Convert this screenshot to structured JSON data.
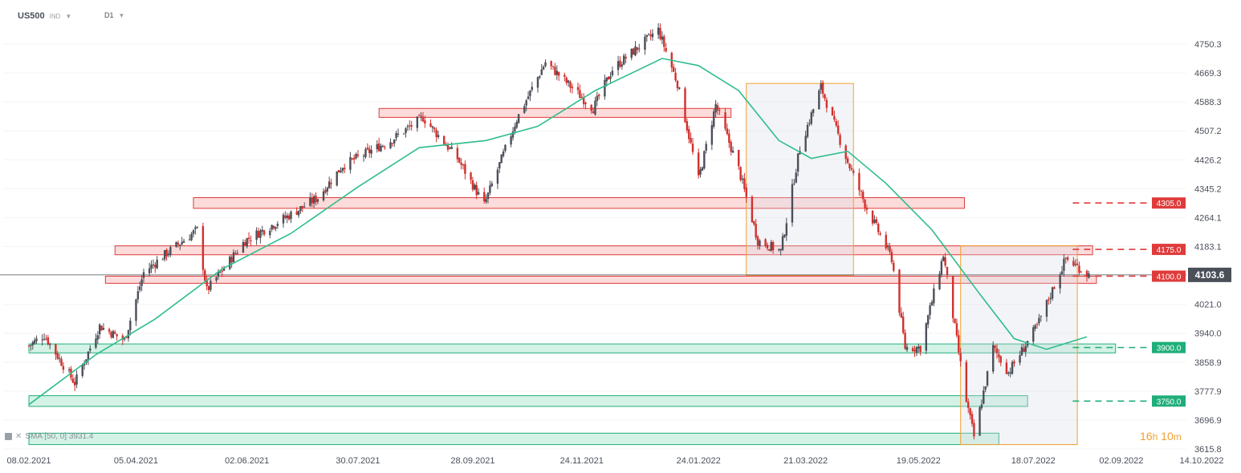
{
  "toolbar": {
    "symbol": "US500",
    "instrument_type": "IND",
    "interval": "D1"
  },
  "indicator": {
    "label": "SMA [50, 0] 3931.4"
  },
  "timer": {
    "hours": "16",
    "h": "h",
    "minutes": "10",
    "m": "m"
  },
  "colors": {
    "up": "#4b4f58",
    "down": "#d0312d",
    "sma": "#2dbd8c",
    "resistance": "#e03b3b",
    "support": "#1fae7a",
    "box": "#f0a030"
  },
  "chart_data": {
    "type": "candlestick",
    "symbol": "US500",
    "timeframe": "D1",
    "ylim": [
      3600,
      4800
    ],
    "y_ticks": [
      "4750.3",
      "4669.3",
      "4588.3",
      "4507.2",
      "4426.2",
      "4345.2",
      "4264.1",
      "4183.1",
      "4021.0",
      "3940.0",
      "3858.9",
      "3777.9",
      "3696.9",
      "3615.8"
    ],
    "x_ticks": [
      "08.02.2021",
      "05.04.2021",
      "02.06.2021",
      "30.07.2021",
      "28.09.2021",
      "24.11.2021",
      "24.01.2022",
      "21.03.2022",
      "19.05.2022",
      "18.07.2022",
      "02.09.2022",
      "14.10.2022"
    ],
    "x_range": [
      "2021-02-08",
      "2022-10-14"
    ],
    "current_price": "4103.6",
    "levels": [
      {
        "value": 4305.0,
        "label": "4305.0",
        "kind": "resistance"
      },
      {
        "value": 4175.0,
        "label": "4175.0",
        "kind": "resistance"
      },
      {
        "value": 4100.0,
        "label": "4100.0",
        "kind": "resistance"
      },
      {
        "value": 3900.0,
        "label": "3900.0",
        "kind": "support"
      },
      {
        "value": 3750.0,
        "label": "3750.0",
        "kind": "support"
      }
    ],
    "zones": [
      {
        "kind": "resistance",
        "from": "2021-08-10",
        "to": "2022-02-10",
        "low": 4545,
        "high": 4570
      },
      {
        "kind": "resistance",
        "from": "2021-05-05",
        "to": "2022-06-12",
        "low": 4290,
        "high": 4320
      },
      {
        "kind": "resistance",
        "from": "2021-03-25",
        "to": "2022-08-18",
        "low": 4160,
        "high": 4185
      },
      {
        "kind": "resistance",
        "from": "2021-03-20",
        "to": "2022-08-20",
        "low": 4080,
        "high": 4100
      },
      {
        "kind": "support",
        "from": "2021-02-08",
        "to": "2022-08-30",
        "low": 3885,
        "high": 3910
      },
      {
        "kind": "support",
        "from": "2021-02-08",
        "to": "2022-07-15",
        "low": 3735,
        "high": 3765
      },
      {
        "kind": "support",
        "from": "2021-02-08",
        "to": "2022-06-30",
        "low": 3628,
        "high": 3660
      }
    ],
    "boxes": [
      {
        "from": "2022-02-18",
        "to": "2022-04-15",
        "low": 4102,
        "high": 4640
      },
      {
        "from": "2022-06-10",
        "to": "2022-08-10",
        "low": 3628,
        "high": 4185
      }
    ],
    "price_path": [
      [
        "2021-02-08",
        3905
      ],
      [
        "2021-02-16",
        3935
      ],
      [
        "2021-03-04",
        3800
      ],
      [
        "2021-03-17",
        3960
      ],
      [
        "2021-03-30",
        3920
      ],
      [
        "2021-04-09",
        4110
      ],
      [
        "2021-04-20",
        4160
      ],
      [
        "2021-05-07",
        4230
      ],
      [
        "2021-05-12",
        4060
      ],
      [
        "2021-06-01",
        4200
      ],
      [
        "2021-06-24",
        4270
      ],
      [
        "2021-07-09",
        4320
      ],
      [
        "2021-07-22",
        4410
      ],
      [
        "2021-08-16",
        4480
      ],
      [
        "2021-09-02",
        4545
      ],
      [
        "2021-09-20",
        4430
      ],
      [
        "2021-10-04",
        4300
      ],
      [
        "2021-10-21",
        4540
      ],
      [
        "2021-11-05",
        4700
      ],
      [
        "2021-11-30",
        4570
      ],
      [
        "2021-12-10",
        4680
      ],
      [
        "2022-01-03",
        4790
      ],
      [
        "2022-01-13",
        4640
      ],
      [
        "2022-01-24",
        4370
      ],
      [
        "2022-02-02",
        4580
      ],
      [
        "2022-02-14",
        4400
      ],
      [
        "2022-02-24",
        4200
      ],
      [
        "2022-03-08",
        4170
      ],
      [
        "2022-03-18",
        4460
      ],
      [
        "2022-03-29",
        4630
      ],
      [
        "2022-04-12",
        4420
      ],
      [
        "2022-04-22",
        4290
      ],
      [
        "2022-05-05",
        4150
      ],
      [
        "2022-05-12",
        3900
      ],
      [
        "2022-05-20",
        3900
      ],
      [
        "2022-06-01",
        4160
      ],
      [
        "2022-06-13",
        3750
      ],
      [
        "2022-06-17",
        3650
      ],
      [
        "2022-06-27",
        3900
      ],
      [
        "2022-07-05",
        3830
      ],
      [
        "2022-07-20",
        3960
      ],
      [
        "2022-08-04",
        4150
      ],
      [
        "2022-08-16",
        4103.6
      ]
    ],
    "sma_path": [
      [
        "2021-02-08",
        3740
      ],
      [
        "2021-03-15",
        3880
      ],
      [
        "2021-04-15",
        3980
      ],
      [
        "2021-05-20",
        4120
      ],
      [
        "2021-06-25",
        4220
      ],
      [
        "2021-07-30",
        4350
      ],
      [
        "2021-08-31",
        4460
      ],
      [
        "2021-10-05",
        4480
      ],
      [
        "2021-11-01",
        4520
      ],
      [
        "2021-12-01",
        4620
      ],
      [
        "2022-01-05",
        4710
      ],
      [
        "2022-01-24",
        4690
      ],
      [
        "2022-02-14",
        4620
      ],
      [
        "2022-03-07",
        4480
      ],
      [
        "2022-03-24",
        4430
      ],
      [
        "2022-04-12",
        4450
      ],
      [
        "2022-05-02",
        4360
      ],
      [
        "2022-05-26",
        4230
      ],
      [
        "2022-06-20",
        4050
      ],
      [
        "2022-07-08",
        3925
      ],
      [
        "2022-07-25",
        3895
      ],
      [
        "2022-08-15",
        3930
      ]
    ]
  }
}
